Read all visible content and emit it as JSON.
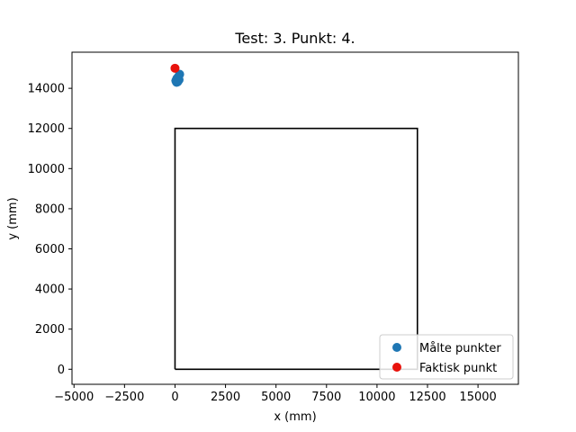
{
  "chart_data": {
    "type": "scatter",
    "title": "Test: 3. Punkt: 4.",
    "xlabel": "x (mm)",
    "ylabel": "y (mm)",
    "xlim": [
      -5100,
      17000
    ],
    "ylim": [
      -750,
      15800
    ],
    "xticks": [
      -5000,
      -2500,
      0,
      2500,
      5000,
      7500,
      10000,
      12500,
      15000
    ],
    "yticks": [
      0,
      2000,
      4000,
      6000,
      8000,
      10000,
      12000,
      14000
    ],
    "grid": false,
    "legend_position": "lower-right",
    "reference_square": {
      "x": [
        0,
        12000,
        12000,
        0,
        0
      ],
      "y": [
        0,
        0,
        12000,
        12000,
        0
      ],
      "color": "#000000"
    },
    "series": [
      {
        "name": "Målte punkter",
        "color": "#1f77b4",
        "x": [
          80,
          120,
          60,
          150,
          230,
          180,
          100,
          40,
          200,
          130,
          90,
          160
        ],
        "y": [
          14300,
          14400,
          14350,
          14450,
          14700,
          14600,
          14500,
          14380,
          14420,
          14320,
          14480,
          14550
        ]
      },
      {
        "name": "Faktisk punkt",
        "color": "#e8120c",
        "x": [
          0
        ],
        "y": [
          15000
        ]
      }
    ]
  }
}
